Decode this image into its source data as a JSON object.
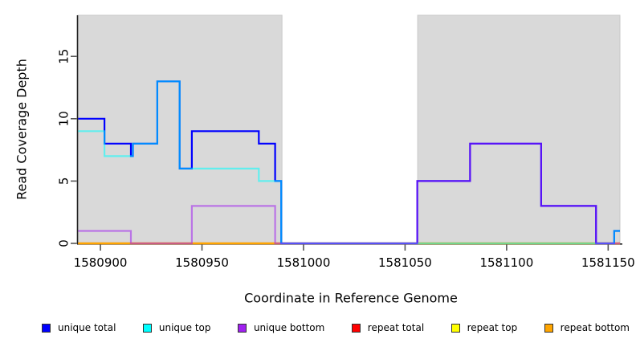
{
  "figure": {
    "x_axis_title": "Coordinate in Reference Genome",
    "y_axis_title": "Read Coverage Depth"
  },
  "chart_data": {
    "type": "line",
    "subtype": "step-coverage-plot",
    "title": "",
    "xlabel": "Coordinate in Reference Genome",
    "ylabel": "Read Coverage Depth",
    "xlim": [
      1580888.9,
      1581155.8
    ],
    "ylim": [
      0,
      18.3
    ],
    "x_ticks": [
      1580900,
      1580950,
      1581000,
      1581050,
      1581100,
      1581150
    ],
    "y_ticks": [
      0,
      5,
      10,
      15
    ],
    "grid": false,
    "legend_position": "bottom",
    "background_color": "#ffffff",
    "panel_color": "#d9d9d9",
    "axis_color": "#222222",
    "tick_color": "#555555",
    "shaded_regions": [
      {
        "x0": 1580888.9,
        "x1": 1580989.4
      },
      {
        "x0": 1581056.2,
        "x1": 1581155.8
      }
    ],
    "series": [
      {
        "name": "unique total",
        "color": "#0000ff",
        "opacity": 1,
        "z": 4,
        "steps": [
          [
            1580889,
            10
          ],
          [
            1580902,
            8
          ],
          [
            1580915,
            7
          ],
          [
            1580916,
            8
          ],
          [
            1580928,
            13
          ],
          [
            1580939,
            6
          ],
          [
            1580945,
            9
          ],
          [
            1580978,
            8
          ],
          [
            1580986,
            5
          ],
          [
            1580989,
            0
          ],
          [
            1581056,
            5
          ],
          [
            1581082,
            8
          ],
          [
            1581117,
            3
          ],
          [
            1581144,
            0
          ],
          [
            1581153,
            1
          ]
        ]
      },
      {
        "name": "unique top",
        "color": "#00ffff",
        "opacity": 0.55,
        "z": 5,
        "steps": [
          [
            1580889,
            9
          ],
          [
            1580902,
            7
          ],
          [
            1580916,
            8
          ],
          [
            1580928,
            13
          ],
          [
            1580939,
            6
          ],
          [
            1580978,
            5
          ],
          [
            1580989,
            0
          ],
          [
            1581153,
            1
          ]
        ]
      },
      {
        "name": "unique bottom",
        "color": "#a020f0",
        "opacity": 0.55,
        "z": 6,
        "steps": [
          [
            1580889,
            1
          ],
          [
            1580915,
            0
          ],
          [
            1580945,
            3
          ],
          [
            1580986,
            0
          ],
          [
            1581056,
            5
          ],
          [
            1581082,
            8
          ],
          [
            1581117,
            3
          ],
          [
            1581144,
            0
          ]
        ]
      },
      {
        "name": "repeat total",
        "color": "#ff0000",
        "opacity": 1,
        "z": 1,
        "steps": [
          [
            1580889,
            0
          ]
        ]
      },
      {
        "name": "repeat top",
        "color": "#ffff00",
        "opacity": 1,
        "z": 2,
        "steps": [
          [
            1580889,
            0
          ]
        ]
      },
      {
        "name": "repeat bottom",
        "color": "#ffa500",
        "opacity": 1,
        "z": 3,
        "steps": [
          [
            1580889,
            0
          ]
        ]
      }
    ]
  }
}
